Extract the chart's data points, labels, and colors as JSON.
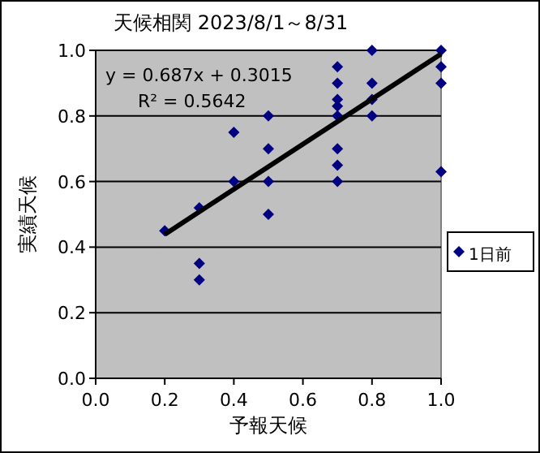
{
  "chart_data": {
    "type": "scatter",
    "title": "天候相関 2023/8/1～8/31",
    "xlabel": "予報天候",
    "ylabel": "実績天候",
    "xlim": [
      0,
      1
    ],
    "ylim": [
      0,
      1
    ],
    "xticks": [
      {
        "value": 0,
        "label": "0.0"
      },
      {
        "value": 0.2,
        "label": "0.2"
      },
      {
        "value": 0.4,
        "label": "0.4"
      },
      {
        "value": 0.6,
        "label": "0.6"
      },
      {
        "value": 0.8,
        "label": "0.8"
      },
      {
        "value": 1,
        "label": "1.0"
      }
    ],
    "yticks": [
      {
        "value": 0,
        "label": "0.0"
      },
      {
        "value": 0.2,
        "label": "0.2"
      },
      {
        "value": 0.4,
        "label": "0.4"
      },
      {
        "value": 0.6,
        "label": "0.6"
      },
      {
        "value": 0.8,
        "label": "0.8"
      },
      {
        "value": 1,
        "label": "1.0"
      }
    ],
    "grid": "y",
    "legend": "right",
    "annotations": [
      "y = 0.687x + 0.3015",
      "R² = 0.5642"
    ],
    "series": [
      {
        "name": "1日前",
        "marker": "diamond",
        "color": "#000080",
        "x": [
          0.2,
          0.3,
          0.3,
          0.3,
          0.4,
          0.4,
          0.5,
          0.5,
          0.5,
          0.5,
          0.7,
          0.7,
          0.7,
          0.7,
          0.7,
          0.7,
          0.7,
          0.7,
          0.8,
          0.8,
          0.8,
          0.8,
          1,
          1,
          1,
          1
        ],
        "values": [
          0.45,
          0.52,
          0.35,
          0.3,
          0.75,
          0.6,
          0.8,
          0.7,
          0.6,
          0.5,
          0.95,
          0.9,
          0.85,
          0.83,
          0.8,
          0.7,
          0.65,
          0.6,
          1,
          0.9,
          0.85,
          0.8,
          1,
          0.95,
          0.9,
          0.63
        ]
      },
      {
        "type": "line",
        "color": "#000000",
        "line_style": "solid",
        "x": [
          0.2,
          1
        ],
        "values": [
          0.439,
          0.989
        ]
      }
    ]
  }
}
